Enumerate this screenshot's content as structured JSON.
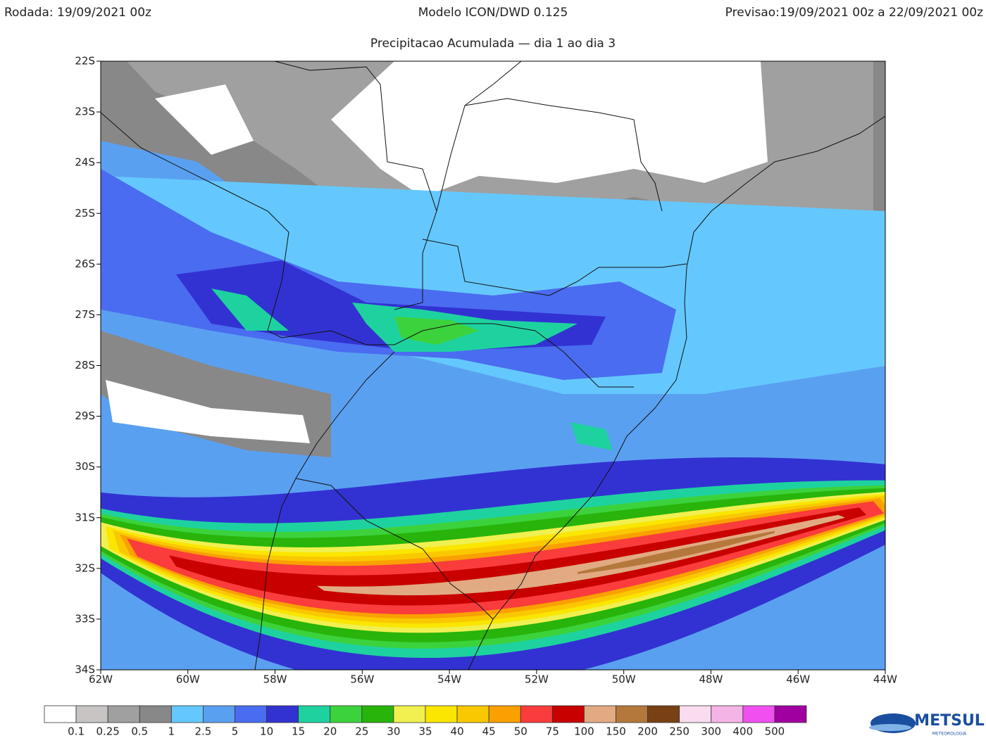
{
  "header": {
    "run": "Rodada: 19/09/2021 00z",
    "model": "Modelo ICON/DWD 0.125",
    "forecast": "Previsao:19/09/2021 00z a 22/09/2021 00z",
    "subtitle": "Precipitacao Acumulada — dia 1 ao dia 3"
  },
  "map": {
    "lat_range": [
      22,
      34
    ],
    "lon_range": [
      62,
      44
    ],
    "lat_ticks": [
      {
        "value": 22,
        "label": "22S"
      },
      {
        "value": 23,
        "label": "23S"
      },
      {
        "value": 24,
        "label": "24S"
      },
      {
        "value": 25,
        "label": "25S"
      },
      {
        "value": 26,
        "label": "26S"
      },
      {
        "value": 27,
        "label": "27S"
      },
      {
        "value": 28,
        "label": "28S"
      },
      {
        "value": 29,
        "label": "29S"
      },
      {
        "value": 30,
        "label": "30S"
      },
      {
        "value": 31,
        "label": "31S"
      },
      {
        "value": 32,
        "label": "32S"
      },
      {
        "value": 33,
        "label": "33S"
      },
      {
        "value": 34,
        "label": "34S"
      }
    ],
    "lon_ticks": [
      {
        "value": 62,
        "label": "62W"
      },
      {
        "value": 60,
        "label": "60W"
      },
      {
        "value": 58,
        "label": "58W"
      },
      {
        "value": 56,
        "label": "56W"
      },
      {
        "value": 54,
        "label": "54W"
      },
      {
        "value": 52,
        "label": "52W"
      },
      {
        "value": 50,
        "label": "50W"
      },
      {
        "value": 48,
        "label": "48W"
      },
      {
        "value": 46,
        "label": "46W"
      },
      {
        "value": 44,
        "label": "44W"
      }
    ]
  },
  "colorbar": {
    "labels": [
      "0.1",
      "0.25",
      "0.5",
      "1",
      "2.5",
      "5",
      "10",
      "15",
      "20",
      "25",
      "30",
      "35",
      "40",
      "45",
      "50",
      "75",
      "100",
      "150",
      "200",
      "250",
      "300",
      "400",
      "500"
    ],
    "colors": [
      "#ffffff",
      "#c8c4c4",
      "#a0a0a0",
      "#888888",
      "#64c8ff",
      "#5aa0f0",
      "#4a6cf0",
      "#3232d2",
      "#1ed2a0",
      "#3cd23c",
      "#28b40a",
      "#f0f050",
      "#fae600",
      "#fac800",
      "#faa000",
      "#fa3c3c",
      "#c80000",
      "#e1aa82",
      "#b4783c",
      "#784114",
      "#fadcf0",
      "#f5b4e6",
      "#f050f0",
      "#a000a0"
    ]
  },
  "logo": {
    "name": "METSUL",
    "tagline": "METEOROLOGIA"
  }
}
